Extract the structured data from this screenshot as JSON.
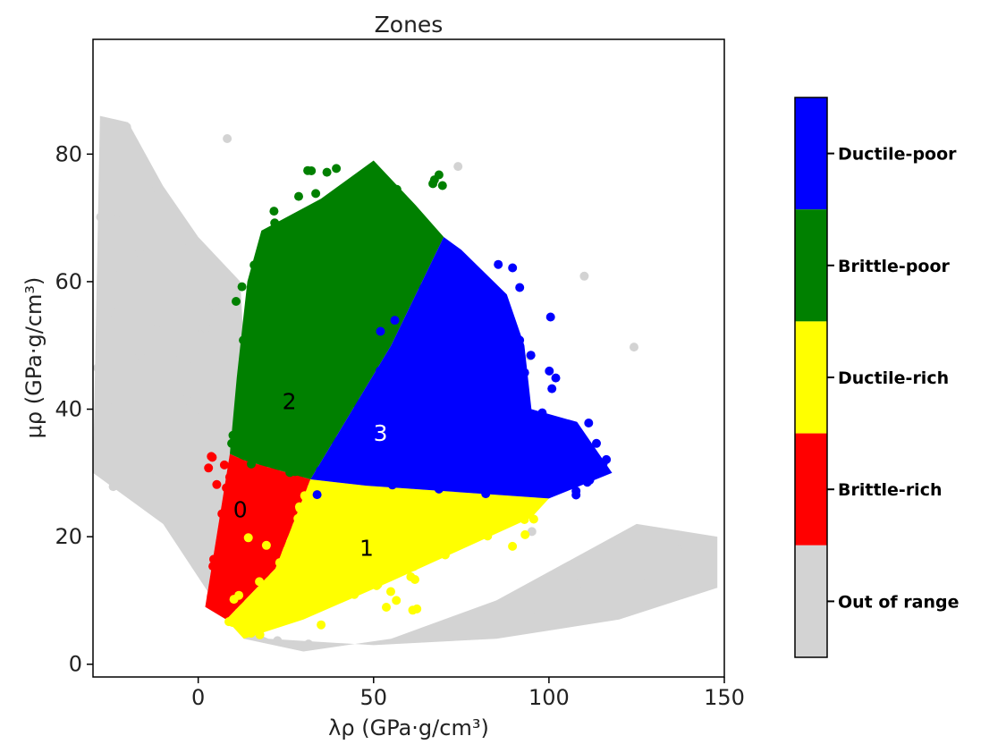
{
  "chart_data": {
    "type": "scatter",
    "title": "Zones",
    "xlabel": "λρ (GPa·g/cm³)",
    "ylabel": "μρ (GPa·g/cm³)",
    "xlim": [
      -30,
      150
    ],
    "ylim": [
      -2,
      98
    ],
    "xticks": [
      0,
      50,
      100,
      150
    ],
    "yticks": [
      0,
      20,
      40,
      60,
      80
    ],
    "grid": false,
    "colors": {
      "out_of_range": "#d3d3d3",
      "brittle_rich": "#ff0000",
      "ductile_rich": "#ffff00",
      "brittle_poor": "#008000",
      "ductile_poor": "#0000ff"
    },
    "zones": [
      {
        "label": "0",
        "color": "#ff0000",
        "label_pos": [
          12,
          24
        ],
        "label_color": "#000000",
        "polygon": [
          [
            9,
            33
          ],
          [
            13,
            32
          ],
          [
            32,
            29
          ],
          [
            22,
            15
          ],
          [
            8,
            7
          ],
          [
            2,
            9
          ]
        ]
      },
      {
        "label": "1",
        "color": "#ffff00",
        "label_pos": [
          48,
          18
        ],
        "label_color": "#000000",
        "polygon": [
          [
            32,
            29
          ],
          [
            48,
            28
          ],
          [
            100,
            26
          ],
          [
            95,
            23
          ],
          [
            55,
            13
          ],
          [
            30,
            7
          ],
          [
            13,
            4
          ],
          [
            8,
            7
          ],
          [
            22,
            15
          ]
        ]
      },
      {
        "label": "2",
        "color": "#008000",
        "label_pos": [
          26,
          41
        ],
        "label_color": "#000000",
        "polygon": [
          [
            9,
            33
          ],
          [
            13,
            32
          ],
          [
            32,
            29
          ],
          [
            55,
            50
          ],
          [
            70,
            67
          ],
          [
            62,
            72
          ],
          [
            50,
            79
          ],
          [
            35,
            73
          ],
          [
            18,
            68
          ],
          [
            14,
            60
          ],
          [
            11,
            45
          ]
        ]
      },
      {
        "label": "3",
        "color": "#0000ff",
        "label_pos": [
          52,
          36
        ],
        "label_color": "#ffffff",
        "polygon": [
          [
            32,
            29
          ],
          [
            48,
            28
          ],
          [
            100,
            26
          ],
          [
            118,
            30
          ],
          [
            108,
            38
          ],
          [
            95,
            40
          ],
          [
            93,
            50
          ],
          [
            88,
            58
          ],
          [
            75,
            65
          ],
          [
            70,
            67
          ],
          [
            55,
            50
          ]
        ]
      }
    ],
    "out_of_range_polygon": [
      [
        -28,
        86
      ],
      [
        -20,
        85
      ],
      [
        -10,
        75
      ],
      [
        0,
        67
      ],
      [
        12,
        60
      ],
      [
        14,
        40
      ],
      [
        9,
        33
      ],
      [
        2,
        9
      ],
      [
        8,
        7
      ],
      [
        13,
        4
      ],
      [
        30,
        2
      ],
      [
        55,
        4
      ],
      [
        85,
        10
      ],
      [
        125,
        22
      ],
      [
        148,
        20
      ],
      [
        148,
        12
      ],
      [
        120,
        7
      ],
      [
        85,
        4
      ],
      [
        50,
        3
      ],
      [
        20,
        4
      ],
      [
        8,
        7
      ],
      [
        -10,
        22
      ],
      [
        -30,
        30
      ]
    ],
    "legend": {
      "type": "colorbar",
      "placement": "right",
      "entries": [
        {
          "label": "Ductile-poor",
          "color": "#0000ff"
        },
        {
          "label": "Brittle-poor",
          "color": "#008000"
        },
        {
          "label": "Ductile-rich",
          "color": "#ffff00"
        },
        {
          "label": "Brittle-rich",
          "color": "#ff0000"
        },
        {
          "label": "Out of range",
          "color": "#d3d3d3"
        }
      ]
    }
  }
}
